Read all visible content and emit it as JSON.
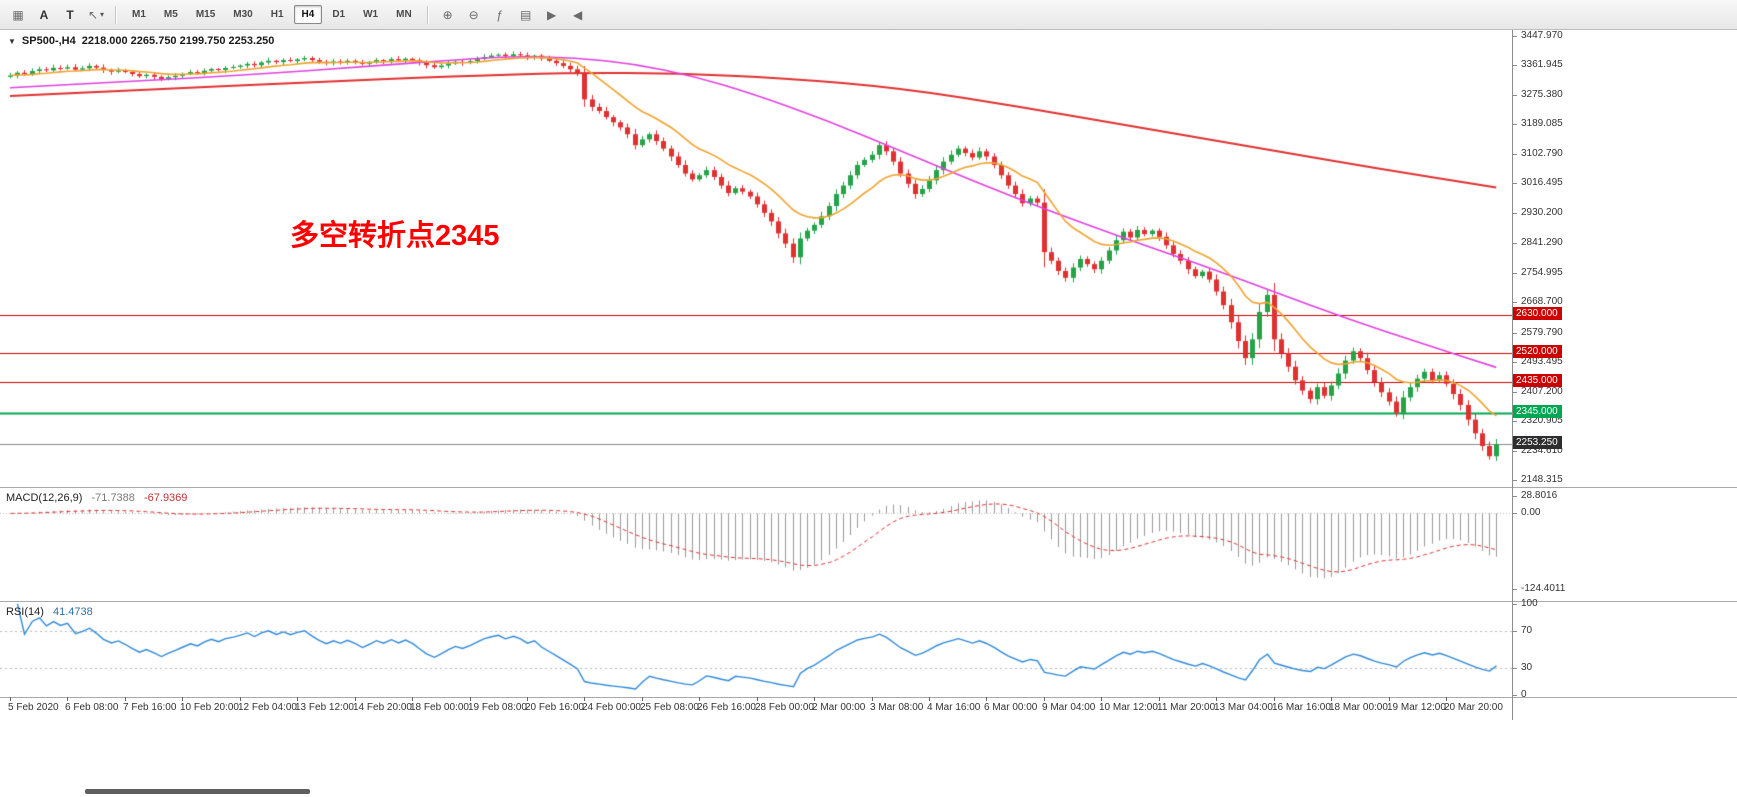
{
  "toolbar": {
    "left_icons": [
      {
        "name": "chart-objects-icon",
        "glyph": "▦"
      },
      {
        "name": "text-label-tool-button",
        "glyph": "A",
        "letter": true
      },
      {
        "name": "text-tool-button",
        "glyph": "T",
        "letter": true
      },
      {
        "name": "draw-tools-dropdown",
        "glyph": "↖",
        "caret": "▾"
      }
    ],
    "timeframes": [
      {
        "label": "M1"
      },
      {
        "label": "M5"
      },
      {
        "label": "M15"
      },
      {
        "label": "M30"
      },
      {
        "label": "H1"
      },
      {
        "label": "H4",
        "active": true
      },
      {
        "label": "D1"
      },
      {
        "label": "W1"
      },
      {
        "label": "MN"
      }
    ],
    "right_icons": [
      {
        "name": "zoom-in-button",
        "glyph": "⊕"
      },
      {
        "name": "zoom-out-button",
        "glyph": "⊖"
      },
      {
        "name": "indicators-button",
        "glyph": "ƒ"
      },
      {
        "name": "templates-button",
        "glyph": "▤"
      },
      {
        "name": "auto-scroll-button",
        "glyph": "▶"
      },
      {
        "name": "chart-shift-button",
        "glyph": "◀"
      }
    ]
  },
  "chart": {
    "collapse_icon": "▼",
    "symbol_line": "SP500-,H4",
    "ohlc_line": "2218.000 2265.750 2199.750 2253.250",
    "annotation": {
      "text": "多空转折点2345",
      "color": "#ff0000"
    },
    "levels": [
      {
        "price": 2630.0,
        "label": "2630.000",
        "color": "#cc0000",
        "width": 1
      },
      {
        "price": 2520.0,
        "label": "2520.000",
        "color": "#cc0000",
        "width": 1
      },
      {
        "price": 2435.0,
        "label": "2435.000",
        "color": "#cc0000",
        "width": 1
      },
      {
        "price": 2345.0,
        "label": "2345.000",
        "color": "#00a651",
        "width": 2
      }
    ],
    "current_price": {
      "value": 2253.25,
      "label": "2253.250",
      "bg": "#2e2e2e"
    },
    "y_axis_labels": [
      "3447.970",
      "3361.945",
      "3275.380",
      "3189.085",
      "3102.790",
      "3016.495",
      "2930.200",
      "2841.290",
      "2754.995",
      "2668.700",
      "2579.790",
      "2493.495",
      "2407.200",
      "2320.905",
      "2234.610",
      "2148.315"
    ],
    "x_labels": [
      "5 Feb 2020",
      "6 Feb 08:00",
      "7 Feb 16:00",
      "10 Feb 20:00",
      "12 Feb 04:00",
      "13 Feb 12:00",
      "14 Feb 20:00",
      "18 Feb 00:00",
      "19 Feb 08:00",
      "20 Feb 16:00",
      "24 Feb 00:00",
      "25 Feb 08:00",
      "26 Feb 16:00",
      "28 Feb 00:00",
      "2 Mar 00:00",
      "3 Mar 08:00",
      "4 Mar 16:00",
      "6 Mar 00:00",
      "9 Mar 04:00",
      "10 Mar 12:00",
      "11 Mar 20:00",
      "13 Mar 04:00",
      "16 Mar 16:00",
      "18 Mar 00:00",
      "19 Mar 12:00",
      "20 Mar 20:00"
    ]
  },
  "chart_data": {
    "type": "candlestick",
    "symbol": "SP500-",
    "timeframe": "H4",
    "title": "SP500-,H4 2218.000 2265.750 2199.750 2253.250",
    "ylim": [
      2128,
      3465
    ],
    "x_label_step_bars": 8,
    "open_first": 3328,
    "closes": [
      3332,
      3340,
      3336,
      3345,
      3350,
      3347,
      3354,
      3352,
      3356,
      3349,
      3353,
      3360,
      3355,
      3348,
      3343,
      3347,
      3342,
      3336,
      3330,
      3334,
      3328,
      3322,
      3327,
      3331,
      3336,
      3342,
      3339,
      3346,
      3351,
      3348,
      3354,
      3357,
      3361,
      3366,
      3362,
      3370,
      3375,
      3371,
      3377,
      3374,
      3379,
      3383,
      3377,
      3372,
      3368,
      3373,
      3370,
      3375,
      3371,
      3366,
      3371,
      3377,
      3374,
      3380,
      3376,
      3381,
      3377,
      3370,
      3362,
      3356,
      3361,
      3367,
      3372,
      3369,
      3374,
      3380,
      3386,
      3390,
      3393,
      3389,
      3394,
      3391,
      3386,
      3390,
      3382,
      3375,
      3368,
      3360,
      3350,
      3337,
      3262,
      3240,
      3228,
      3210,
      3195,
      3180,
      3160,
      3128,
      3145,
      3160,
      3140,
      3118,
      3095,
      3070,
      3045,
      3028,
      3040,
      3055,
      3035,
      3010,
      2988,
      3002,
      2992,
      2978,
      2955,
      2930,
      2905,
      2870,
      2840,
      2800,
      2855,
      2878,
      2895,
      2920,
      2950,
      2985,
      3010,
      3040,
      3070,
      3085,
      3100,
      3128,
      3110,
      3080,
      3045,
      3015,
      2985,
      3000,
      3025,
      3055,
      3080,
      3100,
      3118,
      3105,
      3092,
      3110,
      3095,
      3070,
      3040,
      3010,
      2985,
      2958,
      2972,
      2960,
      2815,
      2790,
      2760,
      2740,
      2770,
      2795,
      2780,
      2765,
      2790,
      2820,
      2850,
      2875,
      2858,
      2880,
      2868,
      2878,
      2860,
      2835,
      2810,
      2790,
      2765,
      2745,
      2758,
      2735,
      2700,
      2660,
      2610,
      2555,
      2505,
      2560,
      2640,
      2690,
      2560,
      2520,
      2480,
      2440,
      2410,
      2385,
      2420,
      2395,
      2425,
      2460,
      2498,
      2525,
      2505,
      2470,
      2435,
      2405,
      2378,
      2345,
      2390,
      2420,
      2445,
      2465,
      2440,
      2455,
      2430,
      2400,
      2368,
      2325,
      2285,
      2248,
      2218,
      2253.25
    ],
    "moving_averages": {
      "orange_ema_period": 13,
      "magenta_points": [
        [
          0,
          3296
        ],
        [
          0.08,
          3314
        ],
        [
          0.16,
          3334
        ],
        [
          0.24,
          3358
        ],
        [
          0.3,
          3378
        ],
        [
          0.34,
          3388
        ],
        [
          0.38,
          3384
        ],
        [
          0.42,
          3366
        ],
        [
          0.46,
          3330
        ],
        [
          0.5,
          3278
        ],
        [
          0.55,
          3200
        ],
        [
          0.6,
          3110
        ],
        [
          0.65,
          3020
        ],
        [
          0.7,
          2935
        ],
        [
          0.75,
          2855
        ],
        [
          0.8,
          2780
        ],
        [
          0.85,
          2700
        ],
        [
          0.9,
          2620
        ],
        [
          0.95,
          2548
        ],
        [
          1,
          2478
        ]
      ],
      "red_points": [
        [
          0,
          3272
        ],
        [
          0.1,
          3292
        ],
        [
          0.2,
          3312
        ],
        [
          0.3,
          3330
        ],
        [
          0.38,
          3340
        ],
        [
          0.45,
          3338
        ],
        [
          0.52,
          3325
        ],
        [
          0.6,
          3295
        ],
        [
          0.68,
          3240
        ],
        [
          0.76,
          3180
        ],
        [
          0.84,
          3120
        ],
        [
          0.92,
          3060
        ],
        [
          1,
          3004
        ]
      ]
    },
    "indicators": {
      "macd": {
        "label": "MACD(12,26,9)",
        "fast": 12,
        "slow": 26,
        "signal": 9,
        "value": "-71.7388",
        "signal_value": "-67.9369",
        "ylim": [
          -145,
          42
        ],
        "y_labels": [
          "28.8016",
          "0.00",
          "-124.4011"
        ]
      },
      "rsi": {
        "label": "RSI(14)",
        "period": 14,
        "value": "41.4738",
        "levels": [
          70,
          30
        ],
        "ylim": [
          0,
          100
        ],
        "y_labels": [
          "100",
          "70",
          "30",
          "0"
        ]
      }
    },
    "colors": {
      "up": "#26a248",
      "down": "#e03131",
      "ma_orange": "#efa32f",
      "ma_magenta": "#e040e0",
      "ma_red": "#e03131",
      "macd_hist": "#9a9a9a",
      "macd_signal": "#e03131",
      "rsi_line": "#2f88d8",
      "bid_line": "#8a8a8a"
    }
  }
}
